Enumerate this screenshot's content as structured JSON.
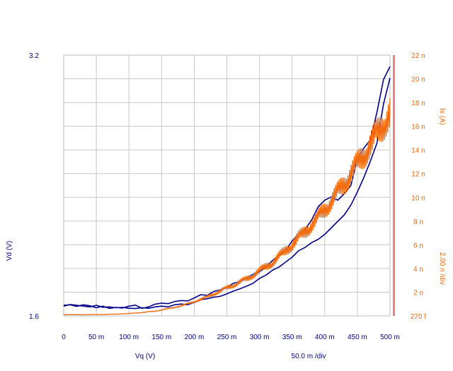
{
  "chart_data": {
    "type": "line",
    "x_axis": {
      "label": "Vq (V)",
      "division_label": "50.0 m /div",
      "range": [
        0,
        0.5
      ],
      "ticks": [
        {
          "value": 0,
          "label": "0"
        },
        {
          "value": 0.05,
          "label": "50 m"
        },
        {
          "value": 0.1,
          "label": "100 m"
        },
        {
          "value": 0.15,
          "label": "150 m"
        },
        {
          "value": 0.2,
          "label": "200 m"
        },
        {
          "value": 0.25,
          "label": "250 m"
        },
        {
          "value": 0.3,
          "label": "300 m"
        },
        {
          "value": 0.35,
          "label": "350 m"
        },
        {
          "value": 0.4,
          "label": "400 m"
        },
        {
          "value": 0.45,
          "label": "450 m"
        },
        {
          "value": 0.5,
          "label": "500 m"
        }
      ]
    },
    "y_left": {
      "label": "Vd (V)",
      "range": [
        1.6,
        3.2
      ],
      "ticks": [
        {
          "value": 1.6,
          "label": "1.6"
        },
        {
          "value": 3.2,
          "label": "3.2"
        }
      ],
      "color": "#00008b"
    },
    "y_right": {
      "label": "Is (A)",
      "division_label": "2.00 n /div",
      "range": [
        0,
        22
      ],
      "ticks": [
        {
          "value": 0,
          "label": "270 f"
        },
        {
          "value": 2,
          "label": "2 n"
        },
        {
          "value": 4,
          "label": "4 n"
        },
        {
          "value": 6,
          "label": "6 n"
        },
        {
          "value": 8,
          "label": "8 n"
        },
        {
          "value": 10,
          "label": "10 n"
        },
        {
          "value": 12,
          "label": "12 n"
        },
        {
          "value": 14,
          "label": "14 n"
        },
        {
          "value": 16,
          "label": "16 n"
        },
        {
          "value": 18,
          "label": "18 n"
        },
        {
          "value": 20,
          "label": "20 n"
        },
        {
          "value": 22,
          "label": "22 n"
        }
      ],
      "color": "#f26b0f"
    },
    "grid": true,
    "series": [
      {
        "axis": "left",
        "color": "#00008b",
        "x": [
          0,
          0.01,
          0.02,
          0.03,
          0.04,
          0.05,
          0.06,
          0.07,
          0.08,
          0.09,
          0.1,
          0.11,
          0.12,
          0.13,
          0.14,
          0.15,
          0.16,
          0.17,
          0.18,
          0.19,
          0.2,
          0.21,
          0.22,
          0.23,
          0.24,
          0.25,
          0.26,
          0.27,
          0.28,
          0.29,
          0.3,
          0.31,
          0.32,
          0.33,
          0.34,
          0.35,
          0.36,
          0.37,
          0.38,
          0.39,
          0.4,
          0.41,
          0.42,
          0.43,
          0.44,
          0.45,
          0.46,
          0.47,
          0.48,
          0.49,
          0.5
        ],
        "y": [
          1.665,
          1.668,
          1.658,
          1.668,
          1.662,
          1.65,
          1.66,
          1.646,
          1.652,
          1.648,
          1.66,
          1.666,
          1.646,
          1.655,
          1.672,
          1.678,
          1.675,
          1.688,
          1.694,
          1.692,
          1.71,
          1.73,
          1.726,
          1.75,
          1.76,
          1.776,
          1.8,
          1.81,
          1.832,
          1.855,
          1.87,
          1.9,
          1.94,
          1.97,
          2.0,
          2.06,
          2.1,
          2.13,
          2.19,
          2.27,
          2.31,
          2.33,
          2.31,
          2.35,
          2.4,
          2.56,
          2.63,
          2.68,
          2.85,
          3.05,
          3.13
        ]
      },
      {
        "axis": "left",
        "color": "#00008b",
        "x": [
          0,
          0.01,
          0.02,
          0.03,
          0.04,
          0.05,
          0.06,
          0.07,
          0.08,
          0.09,
          0.1,
          0.11,
          0.12,
          0.13,
          0.14,
          0.15,
          0.16,
          0.17,
          0.18,
          0.19,
          0.2,
          0.21,
          0.22,
          0.23,
          0.24,
          0.25,
          0.26,
          0.27,
          0.28,
          0.29,
          0.3,
          0.31,
          0.32,
          0.33,
          0.34,
          0.35,
          0.36,
          0.37,
          0.38,
          0.39,
          0.4,
          0.41,
          0.42,
          0.43,
          0.44,
          0.45,
          0.46,
          0.47,
          0.48,
          0.49,
          0.5
        ],
        "y": [
          1.66,
          1.67,
          1.665,
          1.66,
          1.655,
          1.665,
          1.653,
          1.655,
          1.65,
          1.652,
          1.647,
          1.645,
          1.65,
          1.647,
          1.655,
          1.66,
          1.655,
          1.668,
          1.673,
          1.668,
          1.683,
          1.7,
          1.705,
          1.715,
          1.72,
          1.735,
          1.752,
          1.766,
          1.782,
          1.8,
          1.83,
          1.85,
          1.88,
          1.9,
          1.93,
          1.96,
          2.0,
          2.02,
          2.05,
          2.07,
          2.1,
          2.14,
          2.18,
          2.22,
          2.28,
          2.36,
          2.45,
          2.55,
          2.66,
          2.9,
          3.06
        ]
      },
      {
        "axis": "right",
        "color": "#f26b0f",
        "x": [
          0,
          0.02,
          0.04,
          0.06,
          0.08,
          0.1,
          0.12,
          0.14,
          0.16,
          0.18,
          0.2,
          0.22,
          0.24,
          0.26,
          0.28,
          0.3,
          0.32,
          0.33,
          0.34,
          0.35,
          0.36,
          0.37,
          0.38,
          0.39,
          0.4,
          0.41,
          0.42,
          0.43,
          0.44,
          0.45,
          0.46,
          0.47,
          0.48,
          0.49,
          0.5
        ],
        "y": [
          0.1,
          0.1,
          0.1,
          0.12,
          0.15,
          0.2,
          0.28,
          0.4,
          0.6,
          0.85,
          1.2,
          1.6,
          2.1,
          2.6,
          3.1,
          3.8,
          4.5,
          5.0,
          5.5,
          6.0,
          6.6,
          7.1,
          7.7,
          8.3,
          9.0,
          9.7,
          10.4,
          11.2,
          12.0,
          12.8,
          13.6,
          14.5,
          15.3,
          16.2,
          17.2
        ]
      }
    ]
  }
}
